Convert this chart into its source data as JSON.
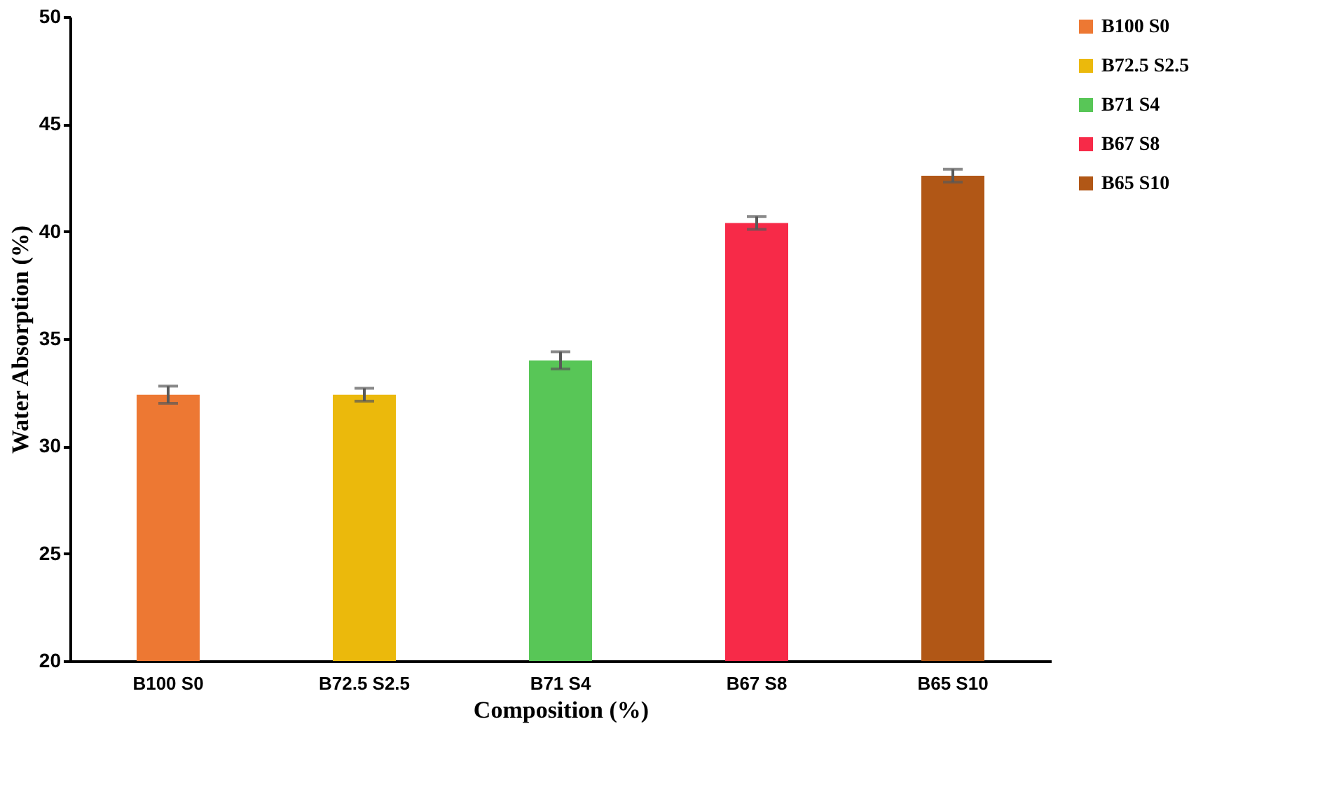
{
  "chart_data": {
    "type": "bar",
    "xlabel": "Composition (%)",
    "ylabel": "Water Absorption (%)",
    "categories": [
      "B100 S0",
      "B72.5 S2.5",
      "B71 S4",
      "B67 S8",
      "B65 S10"
    ],
    "series": [
      {
        "name": "B100 S0",
        "color": "#ed7833",
        "values": [
          32.4,
          null,
          null,
          null,
          null
        ],
        "errors": [
          0.4,
          null,
          null,
          null,
          null
        ]
      },
      {
        "name": "B72.5 S2.5",
        "color": "#ebb90c",
        "values": [
          null,
          32.4,
          null,
          null,
          null
        ],
        "errors": [
          null,
          0.3,
          null,
          null,
          null
        ]
      },
      {
        "name": "B71 S4",
        "color": "#58c657",
        "values": [
          null,
          null,
          34.0,
          null,
          null
        ],
        "errors": [
          null,
          null,
          0.4,
          null,
          null
        ]
      },
      {
        "name": "B67 S8",
        "color": "#f72a48",
        "values": [
          null,
          null,
          null,
          40.4,
          null
        ],
        "errors": [
          null,
          null,
          null,
          0.3,
          null
        ]
      },
      {
        "name": "B65 S10",
        "color": "#b15716",
        "values": [
          null,
          null,
          null,
          null,
          42.6
        ],
        "errors": [
          null,
          null,
          null,
          null,
          0.3
        ]
      }
    ],
    "ylim": [
      20,
      50
    ],
    "yticks": [
      20,
      25,
      30,
      35,
      40,
      45,
      50
    ],
    "grid": false,
    "legend": "right"
  }
}
